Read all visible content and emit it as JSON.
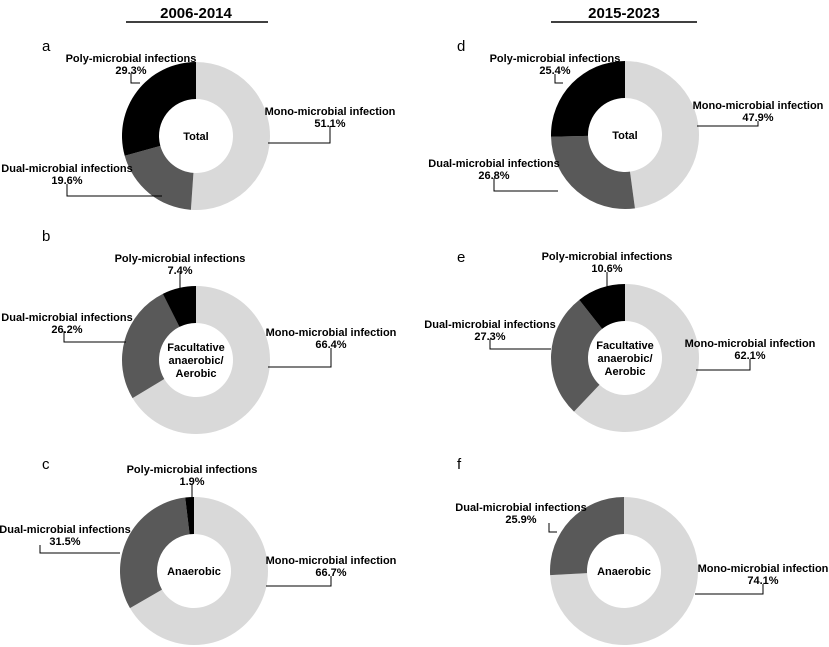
{
  "columns": [
    "2006-2014",
    "2015-2023"
  ],
  "chart_data": [
    {
      "type": "pie",
      "panel": "a",
      "period": "2006-2014",
      "center_label": [
        "Total"
      ],
      "slices": [
        {
          "name": "Mono-microbial infection",
          "value": 51.1,
          "label": "51.1%",
          "color": "#d9d9d9"
        },
        {
          "name": "Dual-microbial infections",
          "value": 19.6,
          "label": "19.6%",
          "color": "#595959"
        },
        {
          "name": "Poly-microbial infections",
          "value": 29.3,
          "label": "29.3%",
          "color": "#000000"
        }
      ]
    },
    {
      "type": "pie",
      "panel": "b",
      "period": "2006-2014",
      "center_label": [
        "Facultative",
        "anaerobic/",
        "Aerobic"
      ],
      "slices": [
        {
          "name": "Mono-microbial infection",
          "value": 66.4,
          "label": "66.4%",
          "color": "#d9d9d9"
        },
        {
          "name": "Dual-microbial infections",
          "value": 26.2,
          "label": "26.2%",
          "color": "#595959"
        },
        {
          "name": "Poly-microbial infections",
          "value": 7.4,
          "label": "7.4%",
          "color": "#000000"
        }
      ]
    },
    {
      "type": "pie",
      "panel": "c",
      "period": "2006-2014",
      "center_label": [
        "Anaerobic"
      ],
      "slices": [
        {
          "name": "Mono-microbial infection",
          "value": 66.7,
          "label": "66.7%",
          "color": "#d9d9d9"
        },
        {
          "name": "Dual-microbial infections",
          "value": 31.5,
          "label": "31.5%",
          "color": "#595959"
        },
        {
          "name": "Poly-microbial infections",
          "value": 1.9,
          "label": "1.9%",
          "color": "#000000"
        }
      ]
    },
    {
      "type": "pie",
      "panel": "d",
      "period": "2015-2023",
      "center_label": [
        "Total"
      ],
      "slices": [
        {
          "name": "Mono-microbial infection",
          "value": 47.9,
          "label": "47.9%",
          "color": "#d9d9d9"
        },
        {
          "name": "Dual-microbial infections",
          "value": 26.8,
          "label": "26.8%",
          "color": "#595959"
        },
        {
          "name": "Poly-microbial infections",
          "value": 25.4,
          "label": "25.4%",
          "color": "#000000"
        }
      ]
    },
    {
      "type": "pie",
      "panel": "e",
      "period": "2015-2023",
      "center_label": [
        "Facultative",
        "anaerobic/",
        "Aerobic"
      ],
      "slices": [
        {
          "name": "Mono-microbial infection",
          "value": 62.1,
          "label": "62.1%",
          "color": "#d9d9d9"
        },
        {
          "name": "Dual-microbial infections",
          "value": 27.3,
          "label": "27.3%",
          "color": "#595959"
        },
        {
          "name": "Poly-microbial infections",
          "value": 10.6,
          "label": "10.6%",
          "color": "#000000"
        }
      ]
    },
    {
      "type": "pie",
      "panel": "f",
      "period": "2015-2023",
      "center_label": [
        "Anaerobic"
      ],
      "slices": [
        {
          "name": "Mono-microbial infection",
          "value": 74.1,
          "label": "74.1%",
          "color": "#d9d9d9"
        },
        {
          "name": "Dual-microbial infections",
          "value": 25.9,
          "label": "25.9%",
          "color": "#595959"
        }
      ]
    }
  ]
}
